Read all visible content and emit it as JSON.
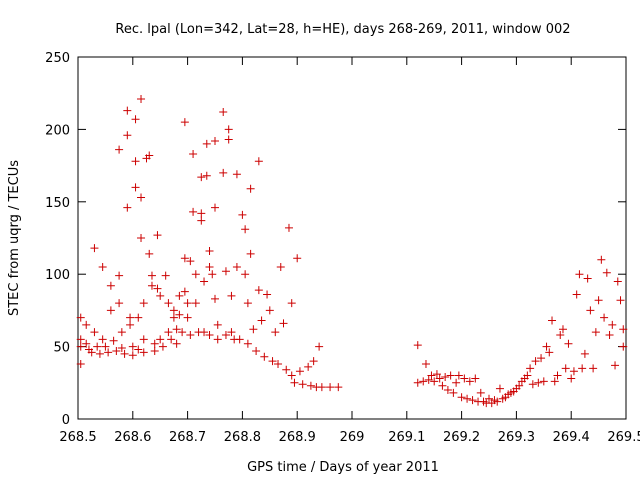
{
  "chart_data": {
    "type": "scatter",
    "title": "Rec. lpal (Lon=342, Lat=28, h=HE), days 268-269, 2011, window 002",
    "xlabel": "GPS time / Days of year 2011",
    "ylabel": "STEC from uqrg / TECUs",
    "xlim": [
      268.5,
      269.5
    ],
    "ylim": [
      0,
      250
    ],
    "xticks": [
      268.5,
      268.6,
      268.7,
      268.8,
      268.9,
      269,
      269.1,
      269.2,
      269.3,
      269.4,
      269.5
    ],
    "xtick_labels": [
      "268.5",
      "268.6",
      "268.7",
      "268.8",
      "268.9",
      "269",
      "269.1",
      "269.2",
      "269.3",
      "269.4",
      "269.5"
    ],
    "yticks": [
      0,
      50,
      100,
      150,
      200,
      250
    ],
    "ytick_labels": [
      "0",
      "50",
      "100",
      "150",
      "200",
      "250"
    ],
    "grid": false,
    "marker": "+",
    "color": "#cc0000",
    "series": [
      {
        "points": [
          [
            268.505,
            70
          ],
          [
            268.505,
            55
          ],
          [
            268.505,
            50
          ],
          [
            268.505,
            38
          ],
          [
            268.515,
            65
          ],
          [
            268.515,
            52
          ],
          [
            268.52,
            48
          ],
          [
            268.525,
            46
          ],
          [
            268.53,
            118
          ],
          [
            268.53,
            60
          ],
          [
            268.535,
            50
          ],
          [
            268.54,
            45
          ],
          [
            268.545,
            105
          ],
          [
            268.545,
            55
          ],
          [
            268.55,
            50
          ],
          [
            268.555,
            46
          ],
          [
            268.56,
            92
          ],
          [
            268.56,
            75
          ],
          [
            268.565,
            54
          ],
          [
            268.57,
            47
          ],
          [
            268.575,
            186
          ],
          [
            268.575,
            99
          ],
          [
            268.575,
            80
          ],
          [
            268.58,
            60
          ],
          [
            268.58,
            49
          ],
          [
            268.585,
            45
          ],
          [
            268.59,
            213
          ],
          [
            268.59,
            196
          ],
          [
            268.59,
            146
          ],
          [
            268.595,
            70
          ],
          [
            268.595,
            65
          ],
          [
            268.6,
            50
          ],
          [
            268.6,
            44
          ],
          [
            268.605,
            207
          ],
          [
            268.605,
            178
          ],
          [
            268.605,
            160
          ],
          [
            268.61,
            70
          ],
          [
            268.61,
            48
          ],
          [
            268.615,
            221
          ],
          [
            268.615,
            153
          ],
          [
            268.615,
            125
          ],
          [
            268.62,
            80
          ],
          [
            268.62,
            55
          ],
          [
            268.62,
            46
          ],
          [
            268.625,
            180
          ],
          [
            268.63,
            182
          ],
          [
            268.63,
            114
          ],
          [
            268.635,
            99
          ],
          [
            268.635,
            92
          ],
          [
            268.64,
            52
          ],
          [
            268.64,
            47
          ],
          [
            268.645,
            127
          ],
          [
            268.645,
            90
          ],
          [
            268.65,
            85
          ],
          [
            268.65,
            55
          ],
          [
            268.655,
            50
          ],
          [
            268.66,
            99
          ],
          [
            268.665,
            80
          ],
          [
            268.665,
            60
          ],
          [
            268.67,
            55
          ],
          [
            268.675,
            75
          ],
          [
            268.675,
            70
          ],
          [
            268.68,
            62
          ],
          [
            268.68,
            52
          ],
          [
            268.685,
            85
          ],
          [
            268.685,
            72
          ],
          [
            268.69,
            60
          ],
          [
            268.695,
            205
          ],
          [
            268.695,
            111
          ],
          [
            268.695,
            88
          ],
          [
            268.7,
            80
          ],
          [
            268.7,
            70
          ],
          [
            268.705,
            109
          ],
          [
            268.705,
            58
          ],
          [
            268.71,
            183
          ],
          [
            268.71,
            143
          ],
          [
            268.715,
            100
          ],
          [
            268.715,
            80
          ],
          [
            268.72,
            60
          ],
          [
            268.725,
            167
          ],
          [
            268.725,
            142
          ],
          [
            268.725,
            137
          ],
          [
            268.73,
            95
          ],
          [
            268.73,
            60
          ],
          [
            268.735,
            190
          ],
          [
            268.735,
            168
          ],
          [
            268.74,
            116
          ],
          [
            268.74,
            105
          ],
          [
            268.74,
            58
          ],
          [
            268.745,
            100
          ],
          [
            268.75,
            192
          ],
          [
            268.75,
            146
          ],
          [
            268.75,
            83
          ],
          [
            268.755,
            65
          ],
          [
            268.755,
            55
          ],
          [
            268.765,
            212
          ],
          [
            268.765,
            170
          ],
          [
            268.77,
            102
          ],
          [
            268.77,
            58
          ],
          [
            268.775,
            200
          ],
          [
            268.775,
            193
          ],
          [
            268.78,
            85
          ],
          [
            268.78,
            60
          ],
          [
            268.785,
            55
          ],
          [
            268.79,
            169
          ],
          [
            268.79,
            105
          ],
          [
            268.795,
            55
          ],
          [
            268.8,
            141
          ],
          [
            268.805,
            131
          ],
          [
            268.805,
            100
          ],
          [
            268.81,
            80
          ],
          [
            268.81,
            52
          ],
          [
            268.815,
            159
          ],
          [
            268.815,
            114
          ],
          [
            268.82,
            62
          ],
          [
            268.825,
            47
          ],
          [
            268.83,
            178
          ],
          [
            268.83,
            89
          ],
          [
            268.835,
            68
          ],
          [
            268.84,
            43
          ],
          [
            268.845,
            86
          ],
          [
            268.85,
            75
          ],
          [
            268.855,
            40
          ],
          [
            268.86,
            60
          ],
          [
            268.865,
            38
          ],
          [
            268.87,
            105
          ],
          [
            268.875,
            66
          ],
          [
            268.88,
            34
          ],
          [
            268.885,
            132
          ],
          [
            268.89,
            80
          ],
          [
            268.89,
            30
          ],
          [
            268.895,
            25
          ],
          [
            268.9,
            111
          ],
          [
            268.905,
            33
          ],
          [
            268.91,
            24
          ],
          [
            268.92,
            36
          ],
          [
            268.925,
            23
          ],
          [
            268.93,
            40
          ],
          [
            268.935,
            22
          ],
          [
            268.94,
            50
          ],
          [
            268.945,
            22
          ],
          [
            268.96,
            22
          ],
          [
            268.975,
            22
          ],
          [
            269.12,
            51
          ],
          [
            269.12,
            25
          ],
          [
            269.13,
            26
          ],
          [
            269.135,
            38
          ],
          [
            269.14,
            27
          ],
          [
            269.145,
            30
          ],
          [
            269.15,
            26
          ],
          [
            269.155,
            31
          ],
          [
            269.16,
            28
          ],
          [
            269.165,
            23
          ],
          [
            269.17,
            29
          ],
          [
            269.175,
            20
          ],
          [
            269.18,
            30
          ],
          [
            269.185,
            18
          ],
          [
            269.19,
            25
          ],
          [
            269.195,
            30
          ],
          [
            269.2,
            15
          ],
          [
            269.205,
            28
          ],
          [
            269.21,
            14
          ],
          [
            269.215,
            26
          ],
          [
            269.22,
            13
          ],
          [
            269.225,
            28
          ],
          [
            269.23,
            12
          ],
          [
            269.235,
            18
          ],
          [
            269.24,
            12
          ],
          [
            269.245,
            11
          ],
          [
            269.25,
            14
          ],
          [
            269.255,
            11
          ],
          [
            269.26,
            13
          ],
          [
            269.265,
            12
          ],
          [
            269.27,
            21
          ],
          [
            269.275,
            14
          ],
          [
            269.28,
            15
          ],
          [
            269.285,
            17
          ],
          [
            269.29,
            18
          ],
          [
            269.295,
            19
          ],
          [
            269.3,
            21
          ],
          [
            269.305,
            23
          ],
          [
            269.31,
            26
          ],
          [
            269.315,
            28
          ],
          [
            269.32,
            30
          ],
          [
            269.325,
            35
          ],
          [
            269.33,
            24
          ],
          [
            269.335,
            40
          ],
          [
            269.34,
            25
          ],
          [
            269.345,
            42
          ],
          [
            269.35,
            26
          ],
          [
            269.355,
            50
          ],
          [
            269.36,
            46
          ],
          [
            269.365,
            68
          ],
          [
            269.37,
            26
          ],
          [
            269.375,
            30
          ],
          [
            269.38,
            58
          ],
          [
            269.385,
            62
          ],
          [
            269.39,
            35
          ],
          [
            269.395,
            52
          ],
          [
            269.4,
            28
          ],
          [
            269.405,
            33
          ],
          [
            269.41,
            86
          ],
          [
            269.415,
            100
          ],
          [
            269.42,
            35
          ],
          [
            269.425,
            45
          ],
          [
            269.43,
            97
          ],
          [
            269.435,
            75
          ],
          [
            269.44,
            35
          ],
          [
            269.445,
            60
          ],
          [
            269.45,
            82
          ],
          [
            269.455,
            110
          ],
          [
            269.46,
            70
          ],
          [
            269.465,
            101
          ],
          [
            269.47,
            58
          ],
          [
            269.475,
            65
          ],
          [
            269.48,
            37
          ],
          [
            269.485,
            95
          ],
          [
            269.49,
            82
          ],
          [
            269.495,
            62
          ],
          [
            269.495,
            50
          ]
        ]
      }
    ]
  }
}
